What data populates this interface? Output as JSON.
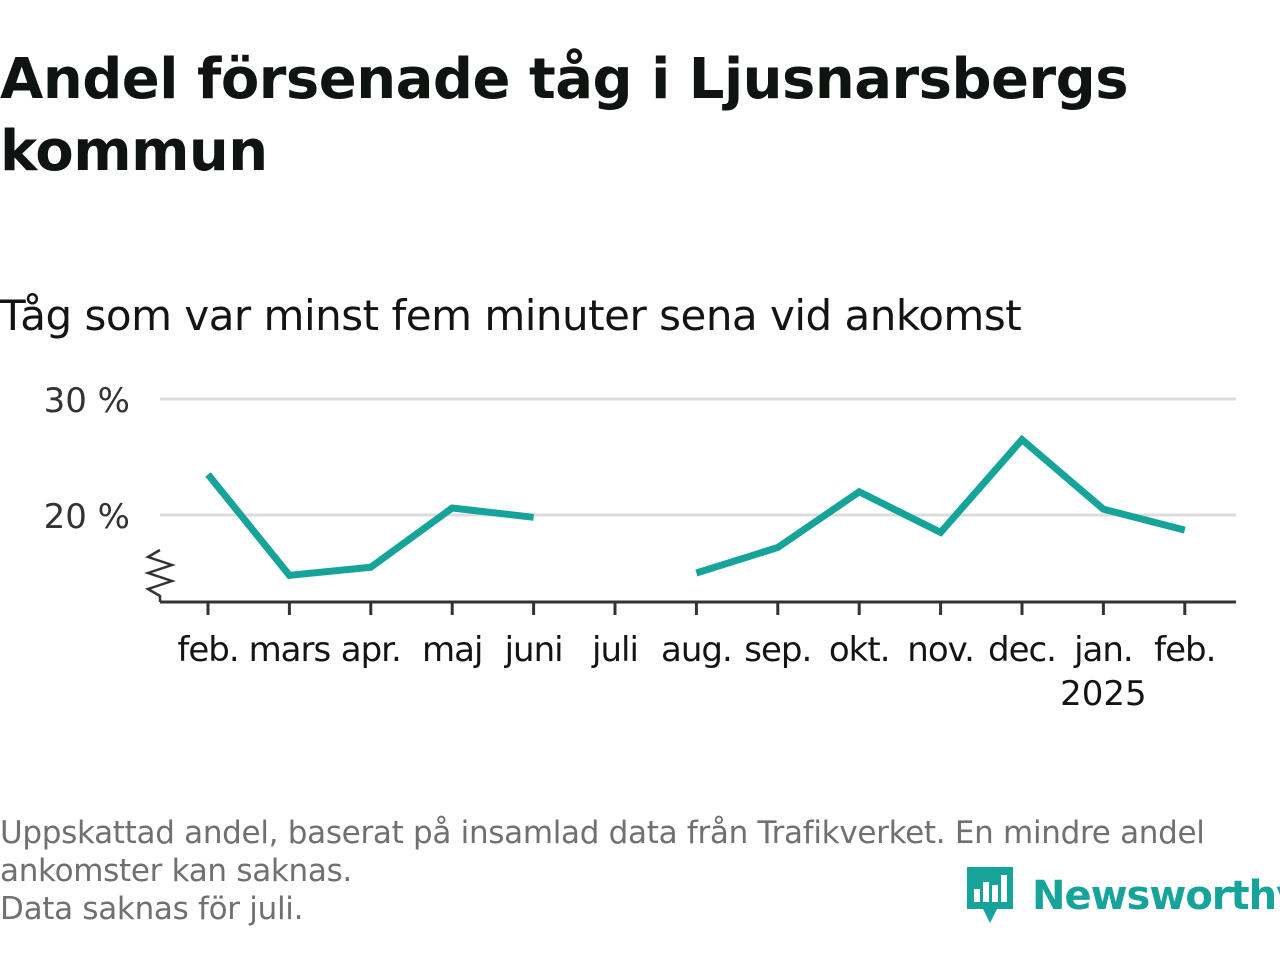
{
  "title": "Andel försenade tåg i Ljusnarsbergs kommun",
  "subtitle": "Tåg som var minst fem minuter sena vid ankomst",
  "footnote": {
    "line1": "Uppskattad andel, baserat på insamlad data från Trafikverket. En mindre andel",
    "line2": "ankomster kan saknas.",
    "line3": "Data saknas för juli."
  },
  "brand": {
    "name": "Newsworthy",
    "icon": "newsworthy-logo-icon"
  },
  "colors": {
    "line": "#16A39A",
    "grid": "#dcdcdc",
    "axis": "#333333",
    "text": "#141414"
  },
  "chart_data": {
    "type": "line",
    "categories": [
      "feb.",
      "mars",
      "apr.",
      "maj",
      "juni",
      "juli",
      "aug.",
      "sep.",
      "okt.",
      "nov.",
      "dec.",
      "jan.",
      "feb."
    ],
    "year_labels": [
      "",
      "",
      "",
      "",
      "",
      "",
      "",
      "",
      "",
      "",
      "",
      "2025",
      ""
    ],
    "series": [
      {
        "values": [
          23.5,
          14.8,
          15.5,
          20.6,
          19.8,
          null,
          15.0,
          17.2,
          22.0,
          18.5,
          26.5,
          20.5,
          18.7
        ]
      }
    ],
    "y_ticks": [
      20,
      30
    ],
    "y_tick_labels": [
      "20 %",
      "30 %"
    ],
    "ylim": [
      13,
      30
    ],
    "y_axis_broken": true,
    "grid": true,
    "xlabel": "",
    "ylabel": ""
  }
}
